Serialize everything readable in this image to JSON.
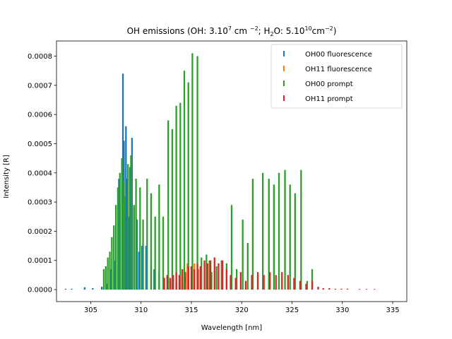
{
  "chart_data": {
    "type": "bar",
    "title": {
      "main": "OH emissions (OH: 3.10",
      "sup1": "7",
      "mid1": " cm ",
      "sup2": "−2",
      "mid2": "; H",
      "sub1": "2",
      "mid3": "O: 5.10",
      "sup3": "10",
      "mid4": "cm",
      "sup4": "−2",
      "end": ")"
    },
    "xlabel": "Wavelength [nm]",
    "ylabel": "Intensity [R]",
    "xlim": [
      301.6,
      336.4
    ],
    "ylim": [
      -4.1e-05,
      0.000852
    ],
    "xticks": [
      305,
      310,
      315,
      320,
      325,
      330,
      335
    ],
    "xtick_labels": [
      "305",
      "310",
      "315",
      "320",
      "325",
      "330",
      "335"
    ],
    "yticks": [
      0,
      0.0001,
      0.0002,
      0.0003,
      0.0004,
      0.0005,
      0.0006,
      0.0007,
      0.0008
    ],
    "ytick_labels": [
      "0.0000",
      "0.0001",
      "0.0002",
      "0.0003",
      "0.0004",
      "0.0005",
      "0.0006",
      "0.0007",
      "0.0008"
    ],
    "legend_position": "upper right",
    "series": [
      {
        "name": "OH00 fluorescence",
        "color": "#1f77b4",
        "x": [
          302.5,
          303.1,
          304.4,
          305.2,
          306.1,
          306.6,
          307.0,
          307.4,
          307.8,
          307.9,
          308.1,
          308.2,
          308.3,
          308.5,
          308.6,
          308.8,
          308.9,
          309.1,
          309.3,
          309.6,
          309.8,
          310.1,
          310.5,
          311.0,
          311.3,
          311.8,
          312.3,
          312.9,
          313.5,
          314.1,
          314.7,
          315.3
        ],
        "values": [
          3e-06,
          3e-06,
          8e-06,
          5e-06,
          1e-05,
          2e-05,
          7e-05,
          0.0001,
          0.00038,
          0.00029,
          0.00045,
          0.00074,
          0.00051,
          0.00056,
          0.00038,
          0.00025,
          0.00042,
          0.00052,
          0.00028,
          0.00024,
          0.00013,
          0.00015,
          0.00015,
          0.0001,
          7e-05,
          6e-05,
          4e-05,
          3e-05,
          3e-05,
          2e-05,
          1e-05,
          1e-05
        ]
      },
      {
        "name": "OH11 fluorescence",
        "color": "#ff7f0e",
        "x": [
          314.6,
          315.0,
          315.3,
          315.7
        ],
        "values": [
          9e-05,
          8e-05,
          9e-05,
          7e-05
        ]
      },
      {
        "name": "OH00 prompt",
        "color": "#2ca02c",
        "x": [
          306.3,
          306.5,
          306.7,
          306.9,
          307.1,
          307.3,
          307.5,
          307.7,
          307.9,
          308.1,
          308.3,
          308.4,
          308.7,
          309.0,
          309.3,
          309.5,
          309.9,
          310.2,
          310.6,
          311.0,
          311.4,
          311.8,
          312.2,
          312.7,
          313.1,
          313.5,
          313.9,
          314.3,
          314.7,
          315.1,
          315.6,
          316.0,
          316.5,
          316.8,
          317.0,
          317.5,
          318.0,
          318.5,
          319.0,
          319.5,
          320.1,
          320.6,
          321.1,
          321.6,
          322.1,
          322.7,
          323.2,
          323.7,
          324.3,
          324.8,
          325.3,
          325.9,
          326.5,
          327.0
        ],
        "values": [
          7e-05,
          8e-05,
          0.00011,
          0.00013,
          0.00018,
          0.00022,
          0.00029,
          0.00035,
          0.0004,
          0.00045,
          0.00037,
          0.00032,
          0.00043,
          0.00046,
          0.00029,
          0.00038,
          0.00035,
          0.00024,
          0.00038,
          0.00033,
          0.00025,
          0.00036,
          0.00025,
          0.00058,
          0.00055,
          0.00063,
          0.00064,
          0.00075,
          0.00071,
          0.00081,
          0.0008,
          0.00011,
          0.00012,
          0.0001,
          6e-05,
          8e-05,
          0.0001,
          9e-05,
          0.00029,
          7e-05,
          0.00024,
          0.00016,
          0.00038,
          5e-05,
          0.0004,
          0.00038,
          0.00036,
          0.0004,
          0.00041,
          0.00036,
          0.00033,
          0.00041,
          3e-05,
          7e-05
        ]
      },
      {
        "name": "OH11 prompt",
        "color": "#d62728",
        "x": [
          312.3,
          312.6,
          312.9,
          313.2,
          313.5,
          313.8,
          314.1,
          314.4,
          314.7,
          315.0,
          315.3,
          315.6,
          315.9,
          316.3,
          316.6,
          316.9,
          317.3,
          317.7,
          318.1,
          318.5,
          318.9,
          319.4,
          319.9,
          320.4,
          321.0,
          321.6,
          322.2,
          322.8,
          323.4,
          324.0,
          324.6,
          325.2,
          325.8,
          326.4,
          327.0,
          327.6,
          328.1,
          328.7,
          329.3,
          329.9,
          330.5,
          331.7,
          332.4,
          333.2
        ],
        "values": [
          4e-05,
          5e-05,
          4e-05,
          5e-05,
          6e-05,
          5e-05,
          7e-05,
          6e-05,
          8e-05,
          8e-05,
          7e-05,
          9e-05,
          8e-05,
          0.0001,
          9e-05,
          0.0001,
          0.00011,
          9e-05,
          0.0001,
          7e-05,
          5e-05,
          4e-05,
          6e-05,
          3e-05,
          5e-05,
          6e-05,
          5e-05,
          6e-05,
          5e-05,
          6e-05,
          5e-05,
          4e-05,
          3e-05,
          2e-05,
          3e-05,
          1e-05,
          5e-06,
          5e-06,
          3e-06,
          3e-06,
          3e-06,
          2e-06,
          2e-06,
          2e-06
        ]
      }
    ]
  }
}
